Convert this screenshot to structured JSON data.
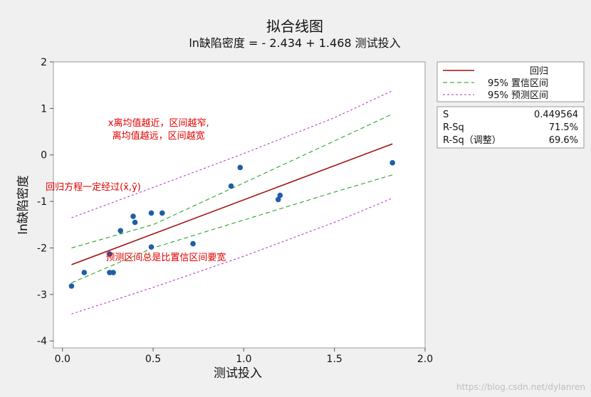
{
  "chart_data": {
    "type": "scatter",
    "title": "拟合线图",
    "subtitle": "ln缺陷密度 = - 2.434 + 1.468 测试投入",
    "xlabel": "测试投入",
    "ylabel": "ln缺陷密度",
    "xlim": [
      -0.05,
      2.0
    ],
    "ylim": [
      -4.15,
      2.0
    ],
    "x_ticks": [
      0.0,
      0.5,
      1.0,
      1.5,
      2.0
    ],
    "x_tick_labels": [
      "0.0",
      "0.5",
      "1.0",
      "1.5",
      "2.0"
    ],
    "y_ticks": [
      2,
      1,
      0,
      -1,
      -2,
      -3,
      -4
    ],
    "y_tick_labels": [
      "2",
      "1",
      "0",
      "-1",
      "-2",
      "-3",
      "-4"
    ],
    "grid": false,
    "legend_position": "right",
    "regression": {
      "intercept": -2.434,
      "slope": 1.468,
      "x_range": [
        0.05,
        1.82
      ]
    },
    "ci_95": {
      "upper": [
        [
          0.05,
          -2.0
        ],
        [
          0.5,
          -1.5
        ],
        [
          1.0,
          -0.6
        ],
        [
          1.5,
          0.3
        ],
        [
          1.82,
          0.88
        ]
      ],
      "lower": [
        [
          0.05,
          -2.75
        ],
        [
          0.5,
          -2.0
        ],
        [
          1.0,
          -1.4
        ],
        [
          1.5,
          -0.8
        ],
        [
          1.82,
          -0.43
        ]
      ]
    },
    "pi_95": {
      "upper": [
        [
          0.05,
          -1.35
        ],
        [
          0.5,
          -0.7
        ],
        [
          1.0,
          0.03
        ],
        [
          1.5,
          0.8
        ],
        [
          1.82,
          1.38
        ]
      ],
      "lower": [
        [
          0.05,
          -3.42
        ],
        [
          0.5,
          -2.85
        ],
        [
          1.0,
          -2.18
        ],
        [
          1.5,
          -1.45
        ],
        [
          1.82,
          -0.93
        ]
      ]
    },
    "points": [
      {
        "x": 0.05,
        "y": -2.82
      },
      {
        "x": 0.12,
        "y": -2.53
      },
      {
        "x": 0.26,
        "y": -2.13
      },
      {
        "x": 0.26,
        "y": -2.53
      },
      {
        "x": 0.28,
        "y": -2.53
      },
      {
        "x": 0.32,
        "y": -1.63
      },
      {
        "x": 0.39,
        "y": -1.32
      },
      {
        "x": 0.4,
        "y": -1.45
      },
      {
        "x": 0.49,
        "y": -1.25
      },
      {
        "x": 0.49,
        "y": -1.98
      },
      {
        "x": 0.55,
        "y": -1.25
      },
      {
        "x": 0.72,
        "y": -1.91
      },
      {
        "x": 0.93,
        "y": -0.67
      },
      {
        "x": 0.98,
        "y": -0.27
      },
      {
        "x": 1.19,
        "y": -0.96
      },
      {
        "x": 1.2,
        "y": -0.87
      },
      {
        "x": 1.82,
        "y": -0.17
      }
    ],
    "annotations": [
      {
        "text": "x离均值越近，区间越窄,",
        "x": 0.53,
        "y": 0.62
      },
      {
        "text": "离均值越远，区间越宽",
        "x": 0.53,
        "y": 0.35
      },
      {
        "text": "回归方程一定经过(x̄,ȳ)",
        "x": 0.17,
        "y": -0.75
      },
      {
        "text": "预测区间总是比置信区间要宽",
        "x": 0.57,
        "y": -2.27
      }
    ],
    "legend": [
      {
        "label": "回归",
        "color": "#a01010",
        "style": "solid"
      },
      {
        "label": "95% 置信区间",
        "color": "#1a9a1a",
        "style": "dashed"
      },
      {
        "label": "95% 预测区间",
        "color": "#b030c0",
        "style": "dashed"
      }
    ],
    "stats": [
      {
        "label": "S",
        "value": "0.449564"
      },
      {
        "label": "R-Sq",
        "value": "71.5%"
      },
      {
        "label": "R-Sq（调整）",
        "value": "69.6%"
      }
    ]
  },
  "watermark": "https://blog.csdn.net/dylanren"
}
